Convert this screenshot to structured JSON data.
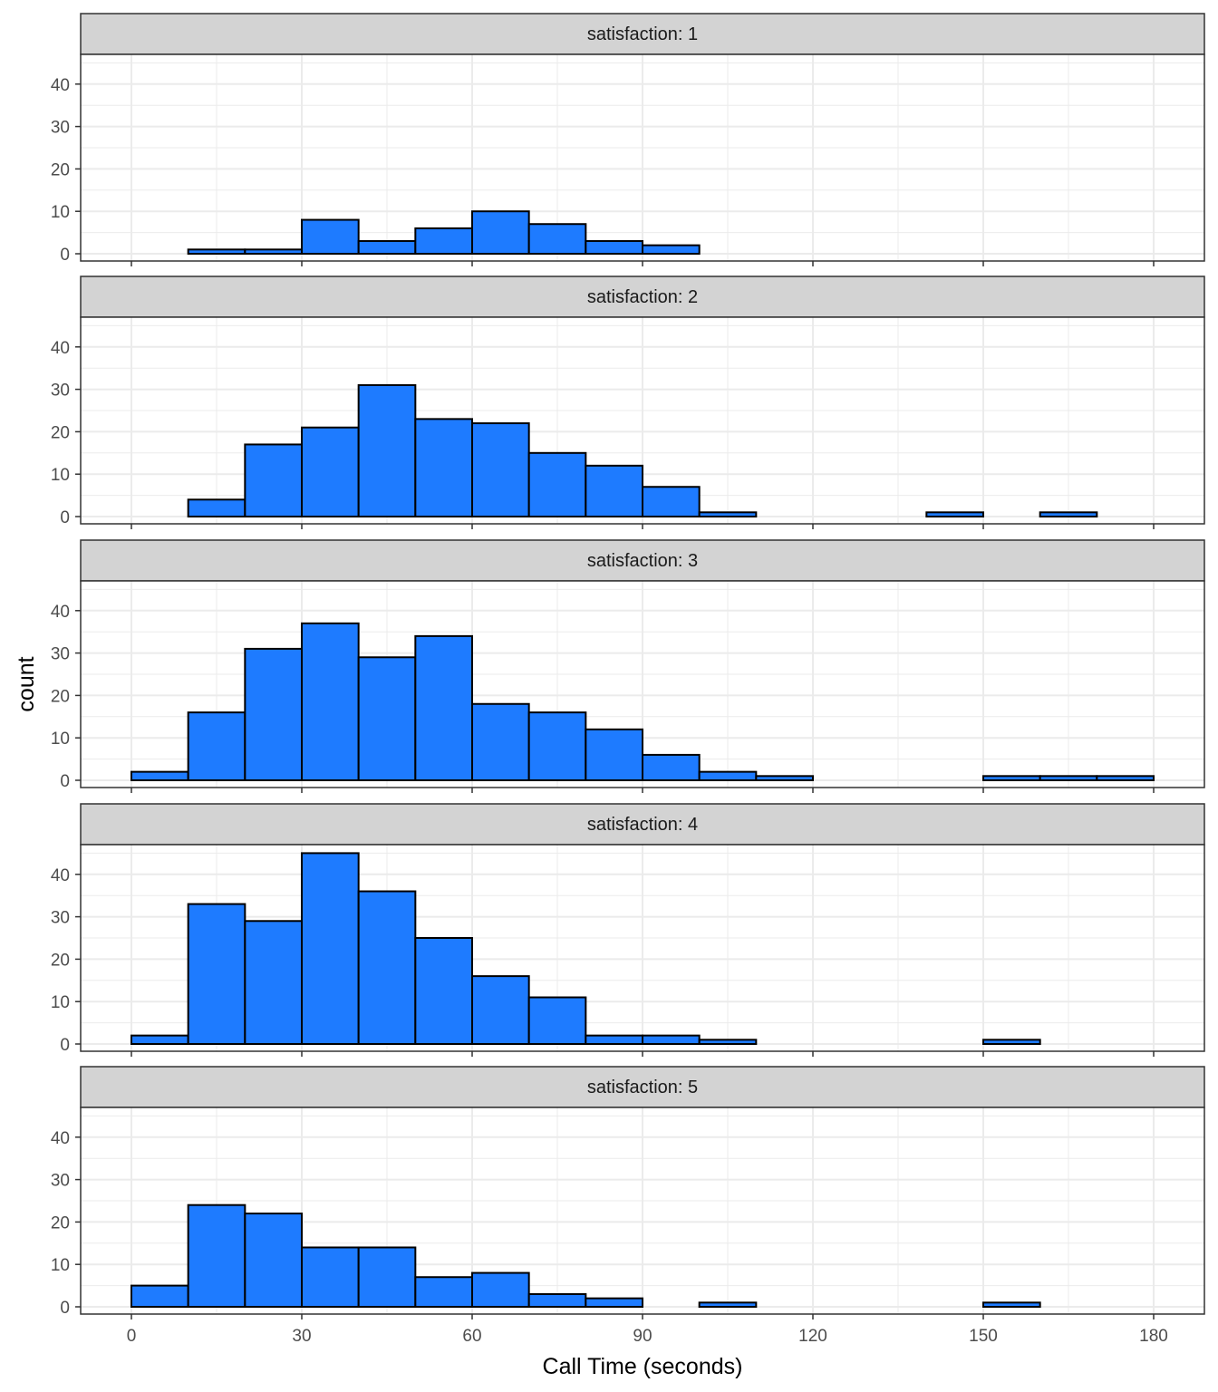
{
  "chart_data": {
    "type": "bar",
    "subtype": "faceted-histogram",
    "xlabel": "Call Time (seconds)",
    "ylabel": "count",
    "xlim": [
      0,
      180
    ],
    "ylim": [
      0,
      45
    ],
    "x_ticks": [
      0,
      30,
      60,
      90,
      120,
      150,
      180
    ],
    "y_ticks": [
      0,
      10,
      20,
      30,
      40
    ],
    "bin_width": 10,
    "bin_starts": [
      0,
      10,
      20,
      30,
      40,
      50,
      60,
      70,
      80,
      90,
      100,
      110,
      120,
      130,
      140,
      150,
      160,
      170
    ],
    "grid": true,
    "bar_fill": "#1E7BFF",
    "bar_outline": "#000000",
    "strip_fill": "#D3D3D3",
    "facets": [
      {
        "label": "satisfaction: 1",
        "counts": [
          0,
          1,
          1,
          8,
          3,
          6,
          10,
          7,
          3,
          2,
          0,
          0,
          0,
          0,
          0,
          0,
          0,
          0
        ]
      },
      {
        "label": "satisfaction: 2",
        "counts": [
          0,
          4,
          17,
          21,
          31,
          23,
          22,
          15,
          12,
          7,
          1,
          0,
          0,
          0,
          1,
          0,
          1,
          0
        ]
      },
      {
        "label": "satisfaction: 3",
        "counts": [
          2,
          16,
          31,
          37,
          29,
          34,
          18,
          16,
          12,
          6,
          2,
          1,
          0,
          0,
          0,
          1,
          1,
          1
        ]
      },
      {
        "label": "satisfaction: 4",
        "counts": [
          2,
          33,
          29,
          45,
          36,
          25,
          16,
          11,
          2,
          2,
          1,
          0,
          0,
          0,
          0,
          1,
          0,
          0
        ]
      },
      {
        "label": "satisfaction: 5",
        "counts": [
          5,
          24,
          22,
          14,
          14,
          7,
          8,
          3,
          2,
          0,
          1,
          0,
          0,
          0,
          0,
          1,
          0,
          0
        ]
      }
    ]
  }
}
